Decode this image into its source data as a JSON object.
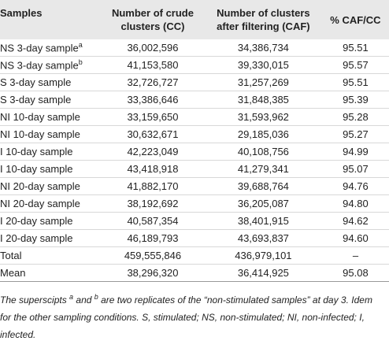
{
  "table": {
    "header": [
      [
        "Samples"
      ],
      [
        "Number of crude",
        "clusters (CC)"
      ],
      [
        "Number of clusters",
        "after filtering (CAF)"
      ],
      [
        "% CAF/CC"
      ]
    ],
    "rows": [
      {
        "sample": "NS 3-day sample",
        "sup": "a",
        "cells": [
          "36,002,596",
          "34,386,734",
          "95.51"
        ]
      },
      {
        "sample": "NS 3-day sample",
        "sup": "b",
        "cells": [
          "41,153,580",
          "39,330,015",
          "95.57"
        ]
      },
      {
        "sample": "S 3-day sample",
        "cells": [
          "32,726,727",
          "31,257,269",
          "95.51"
        ]
      },
      {
        "sample": "S 3-day sample",
        "cells": [
          "33,386,646",
          "31,848,385",
          "95.39"
        ]
      },
      {
        "sample": "NI 10-day sample",
        "cells": [
          "33,159,650",
          "31,593,962",
          "95.28"
        ]
      },
      {
        "sample": "NI 10-day sample",
        "cells": [
          "30,632,671",
          "29,185,036",
          "95.27"
        ]
      },
      {
        "sample": "I 10-day sample",
        "cells": [
          "42,223,049",
          "40,108,756",
          "94.99"
        ]
      },
      {
        "sample": "I 10-day sample",
        "cells": [
          "43,418,918",
          "41,279,341",
          "95.07"
        ]
      },
      {
        "sample": "NI 20-day sample",
        "cells": [
          "41,882,170",
          "39,688,764",
          "94.76"
        ]
      },
      {
        "sample": "NI 20-day sample",
        "cells": [
          "38,192,692",
          "36,205,087",
          "94.80"
        ]
      },
      {
        "sample": "I 20-day sample",
        "cells": [
          "40,587,354",
          "38,401,915",
          "94.62"
        ]
      },
      {
        "sample": "I 20-day sample",
        "cells": [
          "46,189,793",
          "43,693,837",
          "94.60"
        ]
      },
      {
        "sample": "Total",
        "cells": [
          "459,555,846",
          "436,979,101",
          "–"
        ]
      },
      {
        "sample": "Mean",
        "cells": [
          "38,296,320",
          "36,414,925",
          "95.08"
        ]
      }
    ]
  },
  "footnote": [
    {
      "text": "The superscipts "
    },
    {
      "sup": "a"
    },
    {
      "text": " and "
    },
    {
      "sup": "b"
    },
    {
      "text": " are two replicates of the “non-stimulated samples” at day 3. Idem for the other sampling conditions. S, stimulated; NS, non-stimulated; NI, non-infected; I, infected."
    }
  ]
}
